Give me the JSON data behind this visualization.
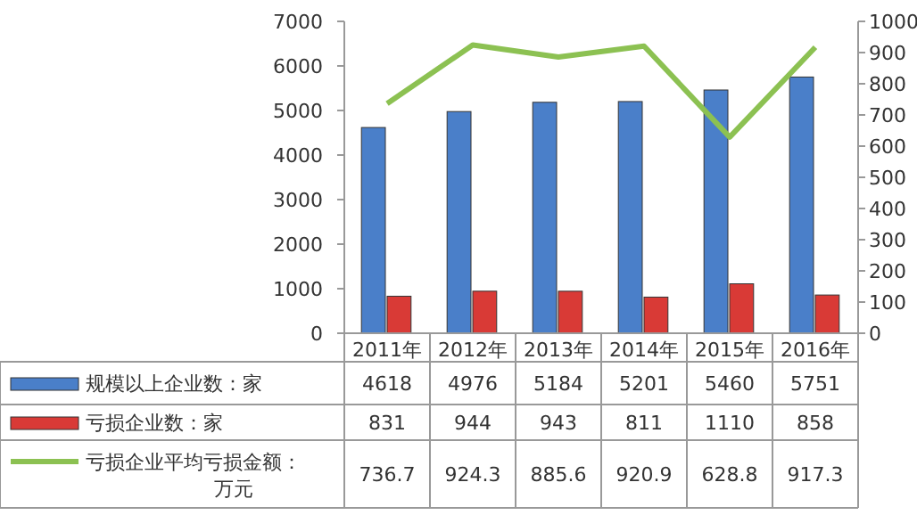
{
  "chart_data": {
    "type": "bar",
    "categories": [
      "2011年",
      "2012年",
      "2013年",
      "2014年",
      "2015年",
      "2016年"
    ],
    "series": [
      {
        "name": "规模以上企业数：家",
        "color": "#4a7fc9",
        "values": [
          4618,
          4976,
          5184,
          5201,
          5460,
          5751
        ]
      },
      {
        "name": "亏损企业数：家",
        "color": "#d93a36",
        "values": [
          831,
          944,
          943,
          811,
          1110,
          858
        ]
      },
      {
        "name": "亏损企业平均亏损金额：万元",
        "color": "#8cc152",
        "type": "line",
        "axis": "y2",
        "values": [
          736.7,
          924.3,
          885.6,
          920.9,
          628.8,
          917.3
        ]
      }
    ],
    "ylim": [
      0,
      7000
    ],
    "yticks": [
      0,
      1000,
      2000,
      3000,
      4000,
      5000,
      6000,
      7000
    ],
    "y2lim": [
      0,
      1000
    ],
    "y2ticks": [
      0,
      100,
      200,
      300,
      400,
      500,
      600,
      700,
      800,
      900,
      1000
    ],
    "data_labels": true,
    "legend": "bottom",
    "grid": false,
    "marker": "none"
  }
}
